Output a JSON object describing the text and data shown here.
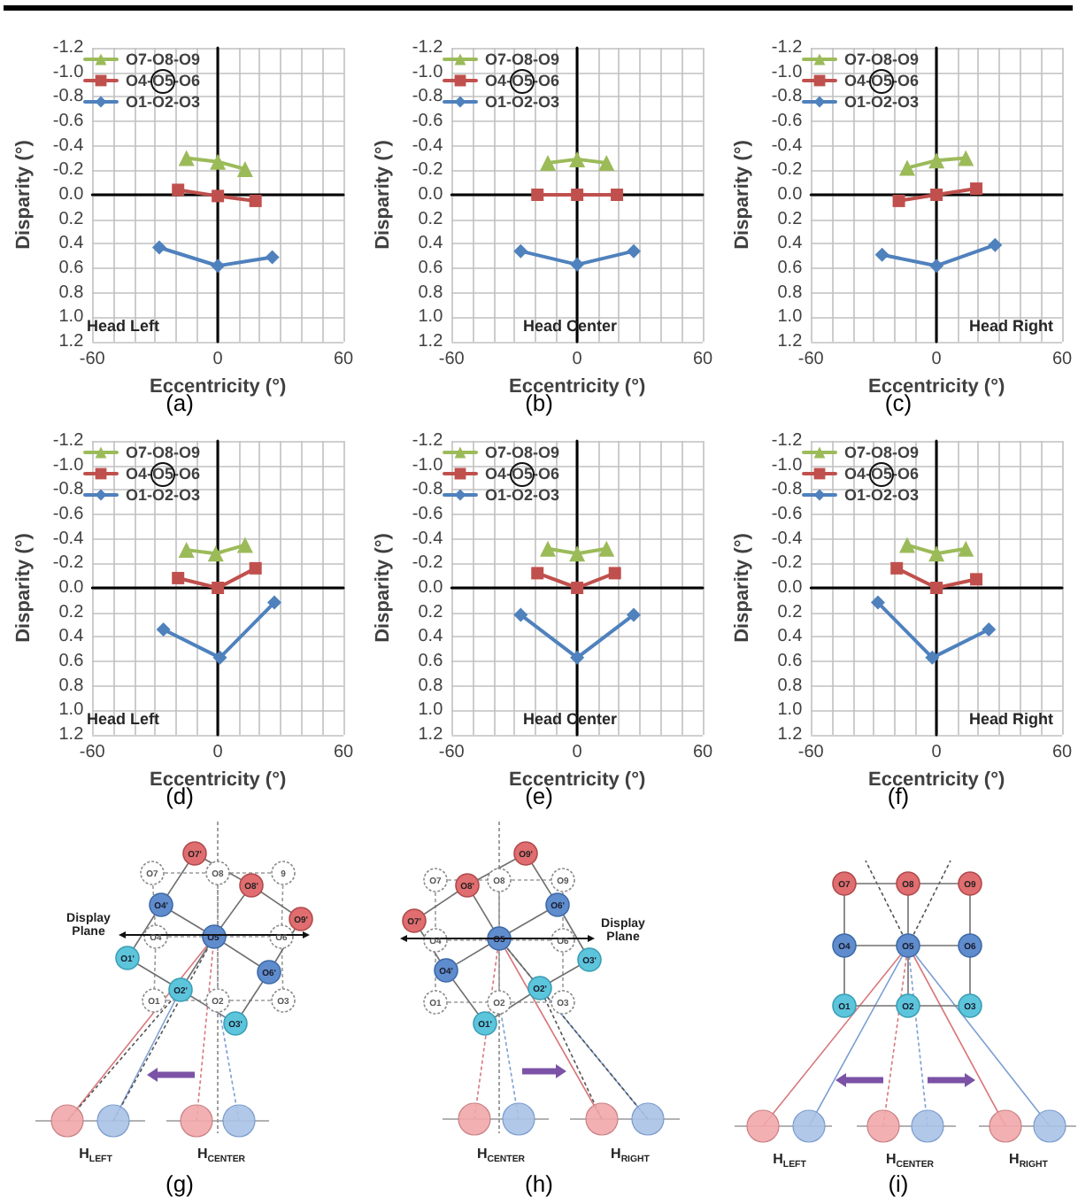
{
  "chart_data": [
    {
      "type": "line",
      "title": "(a)",
      "xlabel": "Eccentricity (°)",
      "ylabel": "Disparity (°)",
      "annotations": [
        "Head Left"
      ],
      "xlim": [
        -60,
        60
      ],
      "xticks": [
        -60,
        {
          "value": -50,
          "label": null
        },
        {
          "value": -40,
          "label": null
        },
        {
          "value": -30,
          "label": null
        },
        {
          "value": -20,
          "label": null
        },
        {
          "value": -10,
          "label": null
        },
        0,
        {
          "value": 10,
          "label": null
        },
        {
          "value": 20,
          "label": null
        },
        {
          "value": 30,
          "label": null
        },
        {
          "value": 40,
          "label": null
        },
        {
          "value": 50,
          "label": null
        },
        60
      ],
      "ylim": [
        1.2,
        -1.2
      ],
      "yticks": [
        -1.2,
        {
          "value": -1,
          "label": "-1.0"
        },
        -0.8,
        -0.6,
        -0.4,
        -0.2,
        {
          "value": 0,
          "label": "0.0"
        },
        0.2,
        0.4,
        0.6,
        0.8,
        {
          "value": 1,
          "label": "1.0"
        },
        1.2
      ],
      "grid": true,
      "legend": "top left",
      "series": [
        {
          "name": "O7-O8-O9",
          "color": "#9bbb59",
          "marker": "triangle",
          "x": [
            -15,
            0,
            13
          ],
          "values": [
            -0.3,
            -0.27,
            -0.21
          ]
        },
        {
          "name": "O4-O5-O6",
          "color": "#c0504d",
          "marker": "square",
          "x": [
            -19,
            0,
            18
          ],
          "values": [
            -0.04,
            0.01,
            0.05
          ]
        },
        {
          "name": "O1-O2-O3",
          "color": "#4f81bd",
          "marker": "diamond",
          "x": [
            -28,
            0,
            26
          ],
          "values": [
            0.43,
            0.58,
            0.51
          ]
        }
      ]
    },
    {
      "type": "line",
      "title": "(b)",
      "xlabel": "Eccentricity (°)",
      "ylabel": "Disparity (°)",
      "annotations": [
        "Head Center"
      ],
      "xlim": [
        -60,
        60
      ],
      "xticks": [
        -60,
        {
          "value": -50,
          "label": null
        },
        {
          "value": -40,
          "label": null
        },
        {
          "value": -30,
          "label": null
        },
        {
          "value": -20,
          "label": null
        },
        {
          "value": -10,
          "label": null
        },
        0,
        {
          "value": 10,
          "label": null
        },
        {
          "value": 20,
          "label": null
        },
        {
          "value": 30,
          "label": null
        },
        {
          "value": 40,
          "label": null
        },
        {
          "value": 50,
          "label": null
        },
        60
      ],
      "ylim": [
        1.2,
        -1.2
      ],
      "yticks": [
        -1.2,
        {
          "value": -1,
          "label": "-1.0"
        },
        -0.8,
        -0.6,
        -0.4,
        -0.2,
        {
          "value": 0,
          "label": "0.0"
        },
        0.2,
        0.4,
        0.6,
        0.8,
        {
          "value": 1,
          "label": "1.0"
        },
        1.2
      ],
      "grid": true,
      "legend": "top left",
      "series": [
        {
          "name": "O7-O8-O9",
          "color": "#9bbb59",
          "marker": "triangle",
          "x": [
            -14,
            0,
            14
          ],
          "values": [
            -0.26,
            -0.29,
            -0.26
          ]
        },
        {
          "name": "O4-O5-O6",
          "color": "#c0504d",
          "marker": "square",
          "x": [
            -19,
            0,
            19
          ],
          "values": [
            0,
            0,
            0
          ]
        },
        {
          "name": "O1-O2-O3",
          "color": "#4f81bd",
          "marker": "diamond",
          "x": [
            -27,
            0,
            27
          ],
          "values": [
            0.46,
            0.57,
            0.46
          ]
        }
      ]
    },
    {
      "type": "line",
      "title": "(c)",
      "xlabel": "Eccentricity (°)",
      "ylabel": "Disparity (°)",
      "annotations": [
        "Head Right"
      ],
      "xlim": [
        -60,
        60
      ],
      "xticks": [
        -60,
        {
          "value": -50,
          "label": null
        },
        {
          "value": -40,
          "label": null
        },
        {
          "value": -30,
          "label": null
        },
        {
          "value": -20,
          "label": null
        },
        {
          "value": -10,
          "label": null
        },
        0,
        {
          "value": 10,
          "label": null
        },
        {
          "value": 20,
          "label": null
        },
        {
          "value": 30,
          "label": null
        },
        {
          "value": 40,
          "label": null
        },
        {
          "value": 50,
          "label": null
        },
        60
      ],
      "ylim": [
        1.2,
        -1.2
      ],
      "yticks": [
        -1.2,
        {
          "value": -1,
          "label": "-1.0"
        },
        -0.8,
        -0.6,
        -0.4,
        -0.2,
        {
          "value": 0,
          "label": "0.0"
        },
        0.2,
        0.4,
        0.6,
        0.8,
        {
          "value": 1,
          "label": "1.0"
        },
        1.2
      ],
      "grid": true,
      "legend": "top left",
      "series": [
        {
          "name": "O7-O8-O9",
          "color": "#9bbb59",
          "marker": "triangle",
          "x": [
            -14,
            0,
            14
          ],
          "values": [
            -0.22,
            -0.28,
            -0.3
          ]
        },
        {
          "name": "O4-O5-O6",
          "color": "#c0504d",
          "marker": "square",
          "x": [
            -18,
            0,
            19
          ],
          "values": [
            0.05,
            0,
            -0.05
          ]
        },
        {
          "name": "O1-O2-O3",
          "color": "#4f81bd",
          "marker": "diamond",
          "x": [
            -26,
            0,
            28
          ],
          "values": [
            0.49,
            0.58,
            0.41
          ]
        }
      ]
    },
    {
      "type": "line",
      "title": "(d)",
      "xlabel": "Eccentricity (°)",
      "ylabel": "Disparity (°)",
      "annotations": [
        "Head Left"
      ],
      "xlim": [
        -60,
        60
      ],
      "xticks": [
        -60,
        {
          "value": -50,
          "label": null
        },
        {
          "value": -40,
          "label": null
        },
        {
          "value": -30,
          "label": null
        },
        {
          "value": -20,
          "label": null
        },
        {
          "value": -10,
          "label": null
        },
        0,
        {
          "value": 10,
          "label": null
        },
        {
          "value": 20,
          "label": null
        },
        {
          "value": 30,
          "label": null
        },
        {
          "value": 40,
          "label": null
        },
        {
          "value": 50,
          "label": null
        },
        60
      ],
      "ylim": [
        1.2,
        -1.2
      ],
      "yticks": [
        -1.2,
        {
          "value": -1,
          "label": "-1.0"
        },
        -0.8,
        -0.6,
        -0.4,
        -0.2,
        {
          "value": 0,
          "label": "0.0"
        },
        0.2,
        0.4,
        0.6,
        0.8,
        {
          "value": 1,
          "label": "1.0"
        },
        1.2
      ],
      "grid": true,
      "legend": "top left",
      "series": [
        {
          "name": "O7-O8-O9",
          "color": "#9bbb59",
          "marker": "triangle",
          "x": [
            -15,
            -1,
            13
          ],
          "values": [
            -0.31,
            -0.28,
            -0.35
          ]
        },
        {
          "name": "O4-O5-O6",
          "color": "#c0504d",
          "marker": "square",
          "x": [
            -19,
            0,
            18
          ],
          "values": [
            -0.08,
            0,
            -0.16
          ]
        },
        {
          "name": "O1-O2-O3",
          "color": "#4f81bd",
          "marker": "diamond",
          "x": [
            -26,
            1,
            27
          ],
          "values": [
            0.34,
            0.57,
            0.12
          ]
        }
      ]
    },
    {
      "type": "line",
      "title": "(e)",
      "xlabel": "Eccentricity (°)",
      "ylabel": "Disparity (°)",
      "annotations": [
        "Head Center"
      ],
      "xlim": [
        -60,
        60
      ],
      "xticks": [
        -60,
        {
          "value": -50,
          "label": null
        },
        {
          "value": -40,
          "label": null
        },
        {
          "value": -30,
          "label": null
        },
        {
          "value": -20,
          "label": null
        },
        {
          "value": -10,
          "label": null
        },
        0,
        {
          "value": 10,
          "label": null
        },
        {
          "value": 20,
          "label": null
        },
        {
          "value": 30,
          "label": null
        },
        {
          "value": 40,
          "label": null
        },
        {
          "value": 50,
          "label": null
        },
        60
      ],
      "ylim": [
        1.2,
        -1.2
      ],
      "yticks": [
        -1.2,
        {
          "value": -1,
          "label": "-1.0"
        },
        -0.8,
        -0.6,
        -0.4,
        -0.2,
        {
          "value": 0,
          "label": "0.0"
        },
        0.2,
        0.4,
        0.6,
        0.8,
        {
          "value": 1,
          "label": "1.0"
        },
        1.2
      ],
      "grid": true,
      "legend": "top left",
      "series": [
        {
          "name": "O7-O8-O9",
          "color": "#9bbb59",
          "marker": "triangle",
          "x": [
            -14,
            0,
            14
          ],
          "values": [
            -0.32,
            -0.28,
            -0.32
          ]
        },
        {
          "name": "O4-O5-O6",
          "color": "#c0504d",
          "marker": "square",
          "x": [
            -19,
            0,
            18
          ],
          "values": [
            -0.12,
            0,
            -0.12
          ]
        },
        {
          "name": "O1-O2-O3",
          "color": "#4f81bd",
          "marker": "diamond",
          "x": [
            -27,
            0,
            27
          ],
          "values": [
            0.22,
            0.57,
            0.22
          ]
        }
      ]
    },
    {
      "type": "line",
      "title": "(f)",
      "xlabel": "Eccentricity (°)",
      "ylabel": "Disparity (°)",
      "annotations": [
        "Head Right"
      ],
      "xlim": [
        -60,
        60
      ],
      "xticks": [
        -60,
        {
          "value": -50,
          "label": null
        },
        {
          "value": -40,
          "label": null
        },
        {
          "value": -30,
          "label": null
        },
        {
          "value": -20,
          "label": null
        },
        {
          "value": -10,
          "label": null
        },
        0,
        {
          "value": 10,
          "label": null
        },
        {
          "value": 20,
          "label": null
        },
        {
          "value": 30,
          "label": null
        },
        {
          "value": 40,
          "label": null
        },
        {
          "value": 50,
          "label": null
        },
        60
      ],
      "ylim": [
        1.2,
        -1.2
      ],
      "yticks": [
        -1.2,
        {
          "value": -1,
          "label": "-1.0"
        },
        -0.8,
        -0.6,
        -0.4,
        -0.2,
        {
          "value": 0,
          "label": "0.0"
        },
        0.2,
        0.4,
        0.6,
        0.8,
        {
          "value": 1,
          "label": "1.0"
        },
        1.2
      ],
      "grid": true,
      "legend": "top left",
      "series": [
        {
          "name": "O7-O8-O9",
          "color": "#9bbb59",
          "marker": "triangle",
          "x": [
            -14,
            0,
            14
          ],
          "values": [
            -0.35,
            -0.28,
            -0.32
          ]
        },
        {
          "name": "O4-O5-O6",
          "color": "#c0504d",
          "marker": "square",
          "x": [
            -19,
            0,
            19
          ],
          "values": [
            -0.16,
            0,
            -0.07
          ]
        },
        {
          "name": "O1-O2-O3",
          "color": "#4f81bd",
          "marker": "diamond",
          "x": [
            -28,
            -2,
            25
          ],
          "values": [
            0.12,
            0.57,
            0.34
          ]
        }
      ]
    },
    {
      "type": "other",
      "title": "(g)",
      "annotations": [
        "O7'",
        "O7",
        "O8",
        "O8'",
        "9",
        "O9'",
        "O4'",
        "O4",
        "O5'",
        "O6",
        "O1'",
        "O6'",
        "O2'",
        "O1",
        "O2",
        "O3",
        "O3'",
        "Display Plane",
        "H$_{LEFT}$",
        "H$_{CENTER}$"
      ]
    },
    {
      "type": "other",
      "title": "(h)",
      "annotations": [
        "O9'",
        "O7",
        "O8'",
        "O8",
        "O9",
        "O7'",
        "O6'",
        "O4",
        "O5",
        "O6",
        "O3'",
        "O4'",
        "O2'",
        "O1",
        "O2",
        "O3",
        "O1'",
        "Display Plane",
        "H$_{CENTER}$",
        "H$_{RIGHT}$"
      ]
    },
    {
      "type": "other",
      "title": "(i)",
      "annotations": [
        "O7",
        "O8",
        "O9",
        "O4",
        "O5",
        "O6",
        "O1",
        "O2",
        "O3",
        "H$_{LEFT}$",
        "H$_{CENTER}$",
        "H$_{RIGHT}$"
      ]
    }
  ]
}
